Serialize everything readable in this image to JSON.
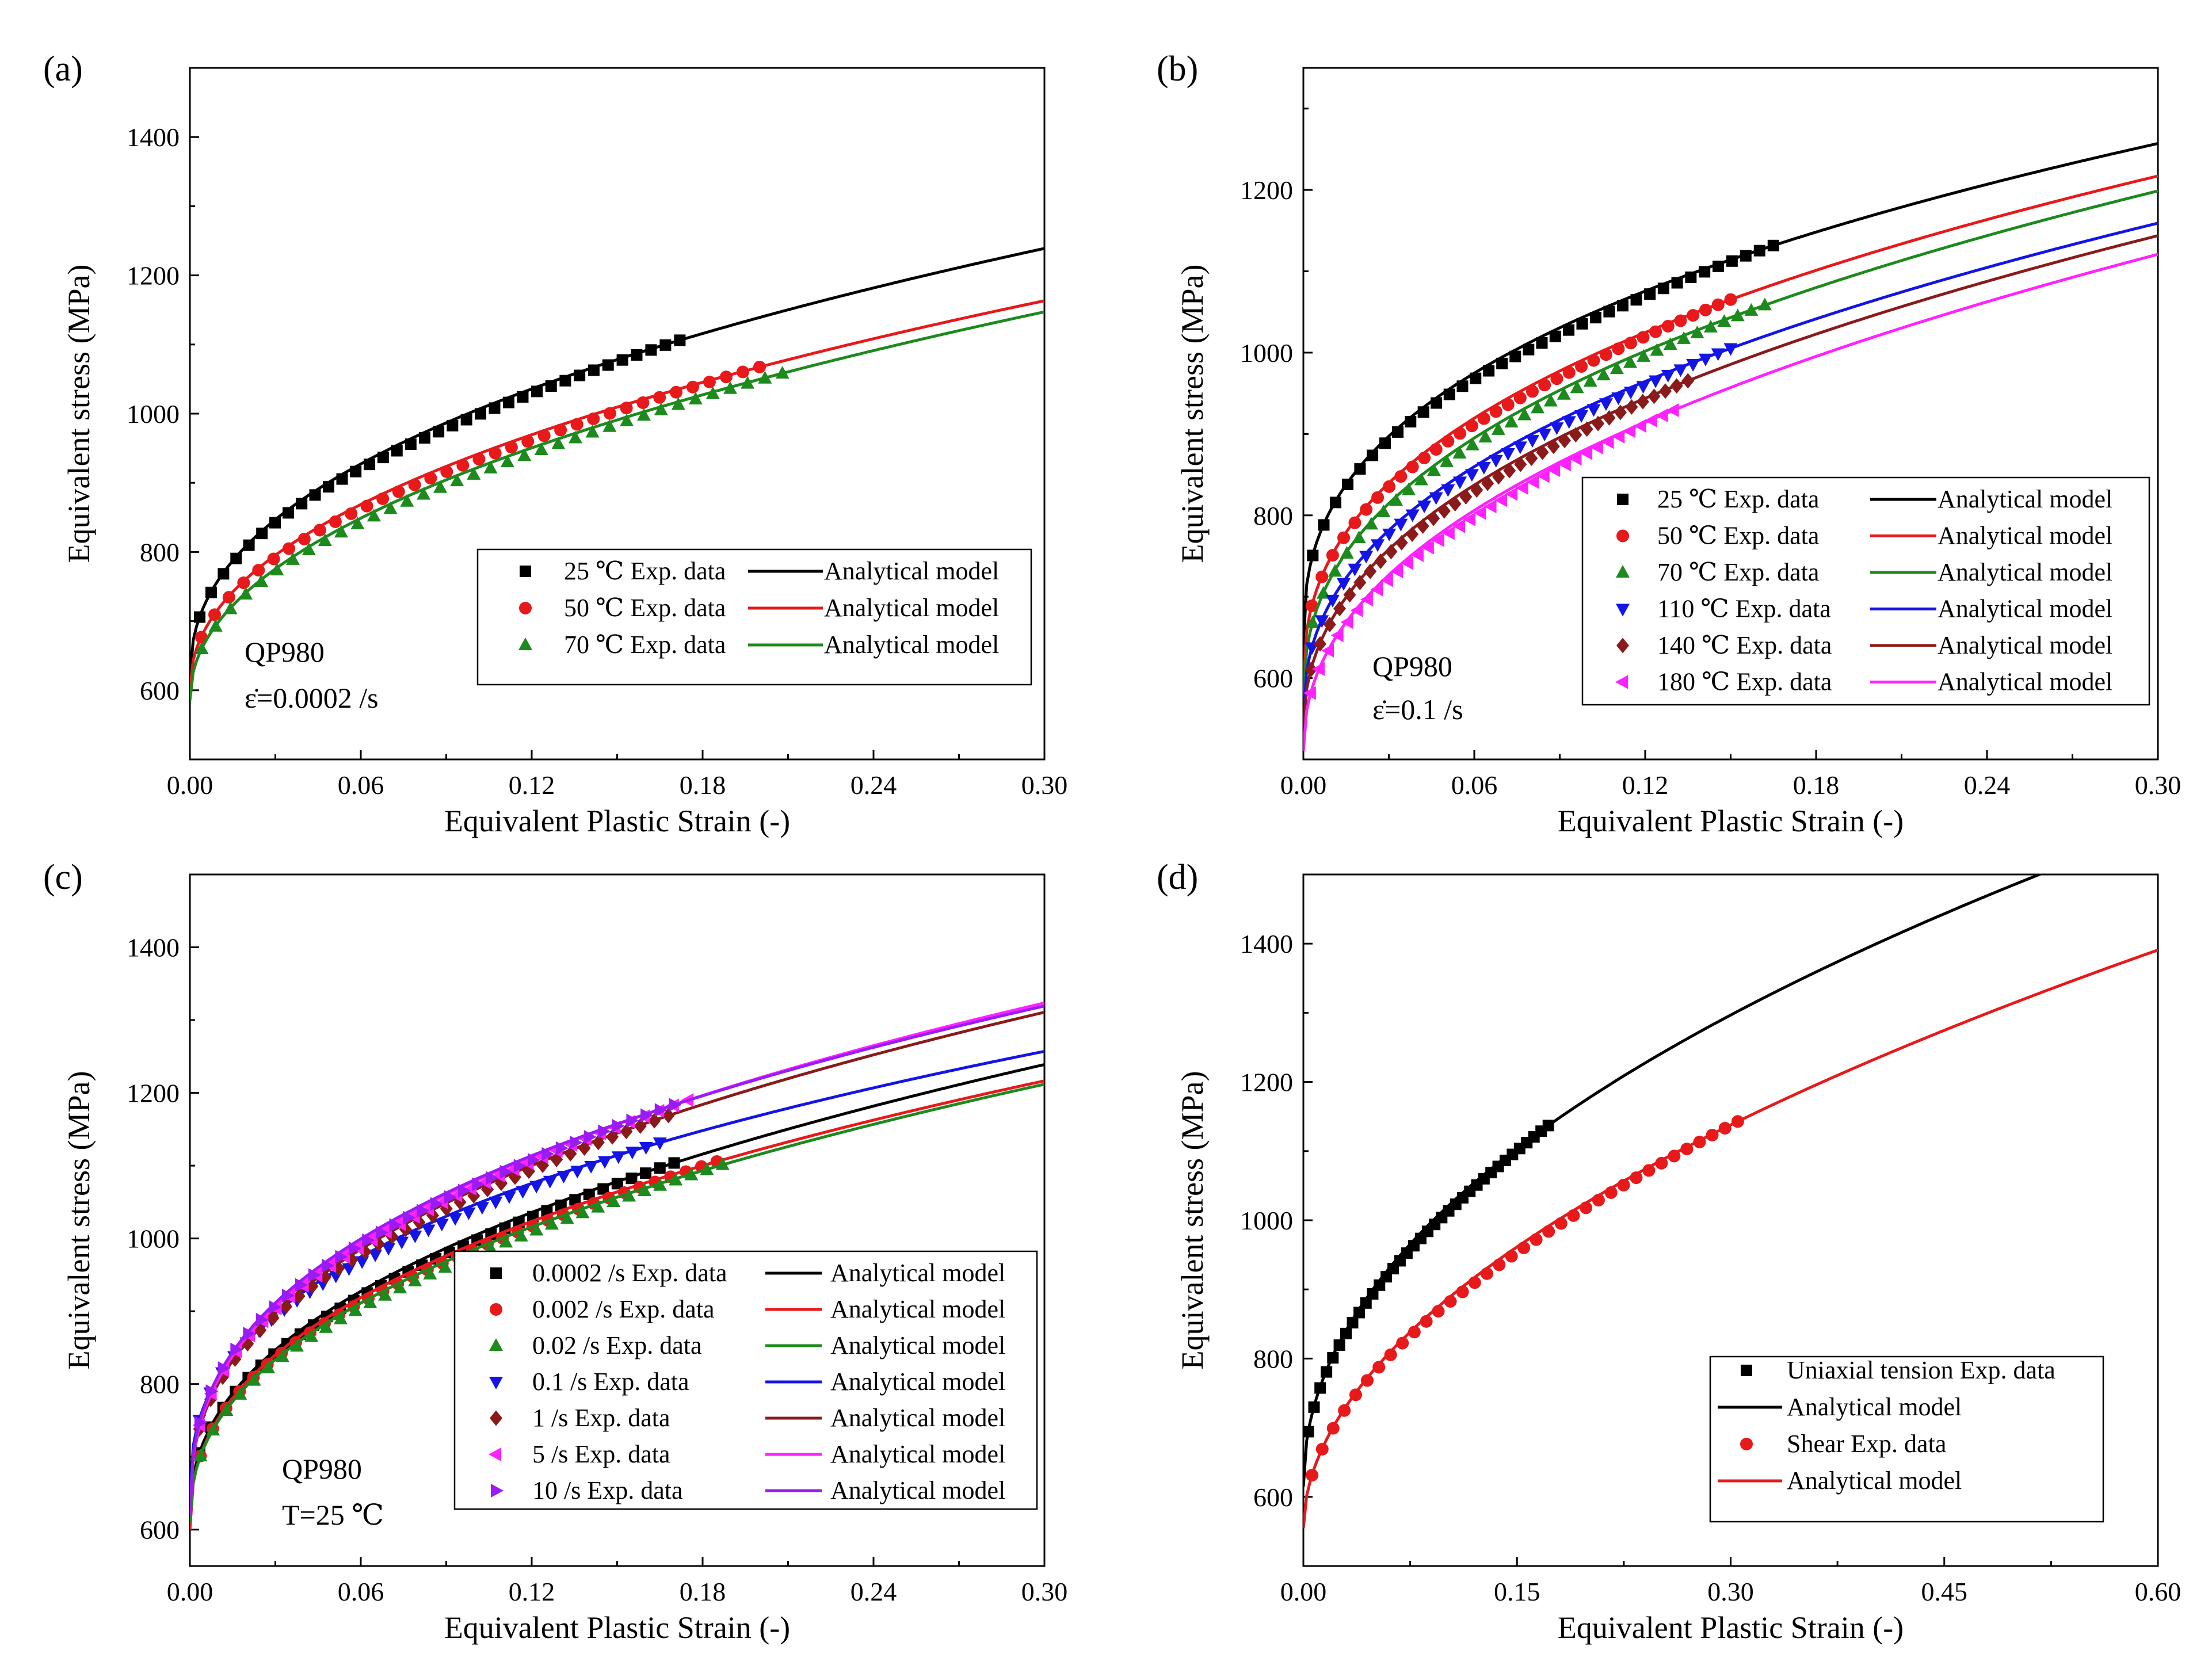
{
  "chart_data": [
    {
      "type": "scatter+line",
      "panel_label": "(a)",
      "xlabel": "Equivalent Plastic Strain (-)",
      "ylabel": "Equivalent stress (MPa)",
      "xlim": [
        0,
        0.3
      ],
      "ylim": [
        500,
        1500
      ],
      "xticks": [
        0,
        0.06,
        0.12,
        0.18,
        0.24,
        0.3
      ],
      "xtick_labels": [
        "0.00",
        "0.06",
        "0.12",
        "0.18",
        "0.24",
        "0.30"
      ],
      "yticks": [
        600,
        800,
        1000,
        1200,
        1400
      ],
      "ytick_labels": [
        "600",
        "800",
        "1000",
        "1200",
        "1400"
      ],
      "annotation": [
        "QP980",
        "ε̇=0.0002 /s"
      ],
      "legend_position": "bottom-right",
      "series": [
        {
          "exp_label": "25 ℃ Exp. data",
          "model_label": "Analytical model",
          "color": "#000000",
          "marker": "square",
          "exp_max_strain": 0.172,
          "model": {
            "s0": 615,
            "K": 1047,
            "n": 0.43
          }
        },
        {
          "exp_label": "50 ℃ Exp. data",
          "model_label": "Analytical model",
          "color": "#e8191b",
          "marker": "circle",
          "exp_max_strain": 0.2,
          "model": {
            "s0": 600,
            "K": 980,
            "n": 0.46
          }
        },
        {
          "exp_label": "70 ℃ Exp. data",
          "model_label": "Analytical model",
          "color": "#1d8a1d",
          "marker": "triangle-up",
          "exp_max_strain": 0.208,
          "model": {
            "s0": 585,
            "K": 990,
            "n": 0.47
          }
        }
      ]
    },
    {
      "type": "scatter+line",
      "panel_label": "(b)",
      "xlabel": "Equivalent Plastic Strain (-)",
      "ylabel": "Equivalent stress (MPa)",
      "xlim": [
        0,
        0.3
      ],
      "ylim": [
        500,
        1350
      ],
      "xticks": [
        0,
        0.06,
        0.12,
        0.18,
        0.24,
        0.3
      ],
      "xtick_labels": [
        "0.00",
        "0.06",
        "0.12",
        "0.18",
        "0.24",
        "0.30"
      ],
      "yticks": [
        600,
        800,
        1000,
        1200
      ],
      "ytick_labels": [
        "600",
        "800",
        "1000",
        "1200"
      ],
      "annotation": [
        "QP980",
        "ε̇=0.1 /s"
      ],
      "legend_position": "bottom-right",
      "series": [
        {
          "exp_label": "25 ℃ Exp. data",
          "model_label": "Analytical model",
          "color": "#000000",
          "marker": "square",
          "exp_max_strain": 0.165,
          "model": {
            "s0": 640,
            "K": 975,
            "n": 0.38
          }
        },
        {
          "exp_label": "50 ℃ Exp. data",
          "model_label": "Analytical model",
          "color": "#e8191b",
          "marker": "circle",
          "exp_max_strain": 0.15,
          "model": {
            "s0": 590,
            "K": 1015,
            "n": 0.4
          }
        },
        {
          "exp_label": "70 ℃ Exp. data",
          "model_label": "Analytical model",
          "color": "#1d8a1d",
          "marker": "triangle-up",
          "exp_max_strain": 0.162,
          "model": {
            "s0": 570,
            "K": 1030,
            "n": 0.41
          }
        },
        {
          "exp_label": "110 ℃ Exp. data",
          "model_label": "Analytical model",
          "color": "#1414e6",
          "marker": "triangle-down",
          "exp_max_strain": 0.15,
          "model": {
            "s0": 550,
            "K": 1010,
            "n": 0.42
          }
        },
        {
          "exp_label": "140 ℃ Exp. data",
          "model_label": "Analytical model",
          "color": "#8b1a1a",
          "marker": "diamond",
          "exp_max_strain": 0.135,
          "model": {
            "s0": 530,
            "K": 1030,
            "n": 0.43
          }
        },
        {
          "exp_label": "180 ℃ Exp. data",
          "model_label": "Analytical model",
          "color": "#ff22ff",
          "marker": "triangle-left",
          "exp_max_strain": 0.13,
          "model": {
            "s0": 510,
            "K": 1050,
            "n": 0.45
          }
        }
      ]
    },
    {
      "type": "scatter+line",
      "panel_label": "(c)",
      "xlabel": "Equivalent Plastic Strain (-)",
      "ylabel": "Equivalent stress (MPa)",
      "xlim": [
        0,
        0.3
      ],
      "ylim": [
        550,
        1500
      ],
      "xticks": [
        0,
        0.06,
        0.12,
        0.18,
        0.24,
        0.3
      ],
      "xtick_labels": [
        "0.00",
        "0.06",
        "0.12",
        "0.18",
        "0.24",
        "0.30"
      ],
      "yticks": [
        600,
        800,
        1000,
        1200,
        1400
      ],
      "ytick_labels": [
        "600",
        "800",
        "1000",
        "1200",
        "1400"
      ],
      "annotation": [
        "QP980",
        "T=25 ℃"
      ],
      "legend_position": "bottom-right",
      "series": [
        {
          "exp_label": "0.0002 /s Exp. data",
          "model_label": "Analytical model",
          "color": "#000000",
          "marker": "square",
          "exp_max_strain": 0.17,
          "model": {
            "s0": 615,
            "K": 1047,
            "n": 0.43
          }
        },
        {
          "exp_label": "0.002 /s Exp. data",
          "model_label": "Analytical model",
          "color": "#e8191b",
          "marker": "circle",
          "exp_max_strain": 0.185,
          "model": {
            "s0": 600,
            "K": 1010,
            "n": 0.41
          }
        },
        {
          "exp_label": "0.02 /s Exp. data",
          "model_label": "Analytical model",
          "color": "#1d8a1d",
          "marker": "triangle-up",
          "exp_max_strain": 0.187,
          "model": {
            "s0": 610,
            "K": 1010,
            "n": 0.43
          }
        },
        {
          "exp_label": "0.1 /s Exp. data",
          "model_label": "Analytical model",
          "color": "#1414e6",
          "marker": "triangle-down",
          "exp_max_strain": 0.165,
          "model": {
            "s0": 640,
            "K": 975,
            "n": 0.38
          }
        },
        {
          "exp_label": "1 /s Exp. data",
          "model_label": "Analytical model",
          "color": "#8b1a1a",
          "marker": "diamond",
          "exp_max_strain": 0.168,
          "model": {
            "s0": 625,
            "K": 1110,
            "n": 0.4
          }
        },
        {
          "exp_label": "5 /s Exp. data",
          "model_label": "Analytical model",
          "color": "#ff22ff",
          "marker": "triangle-left",
          "exp_max_strain": 0.175,
          "model": {
            "s0": 620,
            "K": 1125,
            "n": 0.39
          }
        },
        {
          "exp_label": "10 /s Exp. data",
          "model_label": "Analytical model",
          "color": "#9b1bf5",
          "marker": "triangle-right",
          "exp_max_strain": 0.17,
          "model": {
            "s0": 620,
            "K": 1105,
            "n": 0.38
          }
        }
      ]
    },
    {
      "type": "scatter+line",
      "panel_label": "(d)",
      "xlabel": "Equivalent Plastic Strain (-)",
      "ylabel": "Equivalent stress (MPa)",
      "xlim": [
        0,
        0.6
      ],
      "ylim": [
        500,
        1500
      ],
      "xticks": [
        0,
        0.15,
        0.3,
        0.45,
        0.6
      ],
      "xtick_labels": [
        "0.00",
        "0.15",
        "0.30",
        "0.45",
        "0.60"
      ],
      "yticks": [
        600,
        800,
        1000,
        1200,
        1400
      ],
      "ytick_labels": [
        "600",
        "800",
        "1000",
        "1200",
        "1400"
      ],
      "annotation": [],
      "legend_position": "bottom-right",
      "series": [
        {
          "exp_label": "Uniaxial tension Exp. data",
          "model_label": "Analytical model",
          "color": "#000000",
          "marker": "square",
          "exp_max_strain": 0.172,
          "model": {
            "s0": 615,
            "K": 1215,
            "n": 0.48
          }
        },
        {
          "exp_label": "Shear Exp. data",
          "model_label": "Analytical model",
          "color": "#e8191b",
          "marker": "circle",
          "exp_max_strain": 0.305,
          "model": {
            "s0": 555,
            "K": 1090,
            "n": 0.52
          }
        }
      ]
    }
  ]
}
